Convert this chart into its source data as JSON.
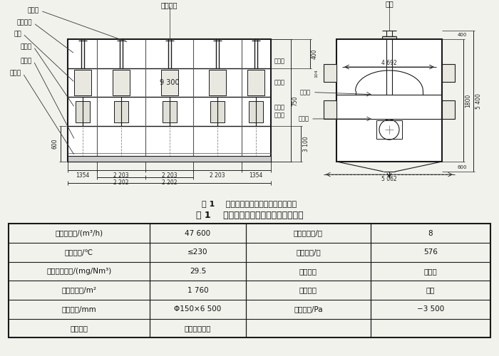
{
  "fig_title": "图 1    改造后的烘干机袋除尘器结构示意",
  "table_title": "表 1    改造后烘干机袋除尘器的技术参数",
  "table_data": [
    [
      "处理烟气量/(m³/h)",
      "47 600",
      "除尘器室数/个",
      "8"
    ],
    [
      "烟气温度/℃",
      "≤230",
      "滤袋数量/条",
      "576"
    ],
    [
      "出口排放浓度/(mg/Nm³)",
      "29.5",
      "清灰方式",
      "反吹风"
    ],
    [
      "总过滤面积/m²",
      "1 760",
      "过滤方式",
      "内滤"
    ],
    [
      "滤袋规格/mm",
      "Φ150×6 500",
      "允许耐压/Pa",
      "−3 500"
    ],
    [
      "滤袋材质",
      "玻纤覆膜滤布",
      "",
      ""
    ]
  ],
  "left_labels": [
    "提升阀",
    "反吹风道",
    "袋室",
    "检修门",
    "进风道",
    "进气口"
  ],
  "right_labels": [
    "出气口",
    "出风道",
    "中隔板",
    "室隔板"
  ],
  "top_label_left": "反吹风机",
  "top_label_right": "滤袋",
  "dim_labels": {
    "9300": "9 300",
    "1354a": "1354",
    "2203a": "2 203",
    "2203b": "2 203",
    "2203c": "2 203",
    "1354b": "1354",
    "2202a": "2 202",
    "2202b": "2 202",
    "750": "750",
    "600": "600",
    "3100": "3 100",
    "400": "400",
    "1800": "1800",
    "5400": "5 400",
    "4692": "4 692",
    "5062": "5 062",
    "600b": "600"
  },
  "bg_color": "#f2f2ed",
  "draw_bg": "#ffffff",
  "line_color": "#1a1a1a",
  "text_color": "#111111",
  "dim_color": "#222222"
}
